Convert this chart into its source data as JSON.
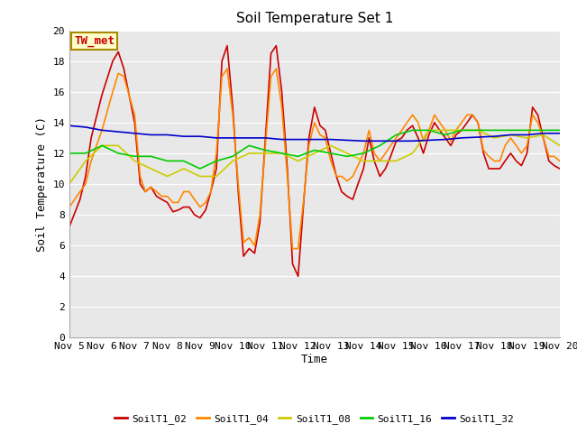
{
  "title": "Soil Temperature Set 1",
  "xlabel": "Time",
  "ylabel": "Soil Temperature (C)",
  "ylim": [
    0,
    20
  ],
  "xlim": [
    0,
    15
  ],
  "plot_bg_color": "#e8e8e8",
  "fig_background": "#ffffff",
  "annotation_text": "TW_met",
  "annotation_color": "#cc0000",
  "annotation_bg": "#ffffcc",
  "annotation_border": "#aa8800",
  "x_tick_labels": [
    "Nov 5",
    "Nov 6",
    "Nov 7",
    "Nov 8",
    "Nov 9",
    "Nov 10",
    "Nov 11",
    "Nov 12",
    "Nov 13",
    "Nov 14",
    "Nov 15",
    "Nov 16",
    "Nov 17",
    "Nov 18",
    "Nov 19",
    "Nov 20"
  ],
  "series_order": [
    "SoilT1_02",
    "SoilT1_04",
    "SoilT1_08",
    "SoilT1_16",
    "SoilT1_32"
  ],
  "series": {
    "SoilT1_02": {
      "color": "#cc0000",
      "x": [
        0,
        0.33,
        0.5,
        0.67,
        1.0,
        1.33,
        1.5,
        1.67,
        2.0,
        2.17,
        2.33,
        2.5,
        2.67,
        2.83,
        3.0,
        3.17,
        3.33,
        3.5,
        3.67,
        3.83,
        4.0,
        4.17,
        4.33,
        4.5,
        4.67,
        4.83,
        5.0,
        5.17,
        5.33,
        5.5,
        5.67,
        5.83,
        6.0,
        6.17,
        6.33,
        6.5,
        6.67,
        6.83,
        7.0,
        7.17,
        7.33,
        7.5,
        7.67,
        7.83,
        8.0,
        8.17,
        8.33,
        8.5,
        8.67,
        8.83,
        9.0,
        9.17,
        9.33,
        9.5,
        9.67,
        9.83,
        10.0,
        10.17,
        10.33,
        10.5,
        10.67,
        10.83,
        11.0,
        11.17,
        11.33,
        11.5,
        11.67,
        11.83,
        12.0,
        12.17,
        12.33,
        12.5,
        12.67,
        12.83,
        13.0,
        13.17,
        13.33,
        13.5,
        13.67,
        13.83,
        14.0,
        14.17,
        14.33,
        14.5,
        14.67,
        14.83,
        15.0
      ],
      "y": [
        7.2,
        9.0,
        10.5,
        13.0,
        15.8,
        18.0,
        18.6,
        17.5,
        14.0,
        10.0,
        9.5,
        9.8,
        9.2,
        9.0,
        8.8,
        8.2,
        8.3,
        8.5,
        8.5,
        8.0,
        7.8,
        8.3,
        9.5,
        11.0,
        18.0,
        19.0,
        15.0,
        9.5,
        5.3,
        5.8,
        5.5,
        7.5,
        13.0,
        18.5,
        19.0,
        16.0,
        11.0,
        4.8,
        4.0,
        8.8,
        13.0,
        15.0,
        13.8,
        13.5,
        12.0,
        10.5,
        9.5,
        9.2,
        9.0,
        10.0,
        11.0,
        13.0,
        11.5,
        10.5,
        11.0,
        11.8,
        12.8,
        13.0,
        13.5,
        13.8,
        13.0,
        12.0,
        13.2,
        14.0,
        13.5,
        13.0,
        12.5,
        13.2,
        13.5,
        14.0,
        14.5,
        14.0,
        12.0,
        11.0,
        11.0,
        11.0,
        11.5,
        12.0,
        11.5,
        11.2,
        12.0,
        15.0,
        14.5,
        13.0,
        11.5,
        11.2,
        11.0
      ]
    },
    "SoilT1_04": {
      "color": "#ff8800",
      "x": [
        0,
        0.33,
        0.5,
        0.67,
        1.0,
        1.33,
        1.5,
        1.67,
        2.0,
        2.17,
        2.33,
        2.5,
        2.67,
        2.83,
        3.0,
        3.17,
        3.33,
        3.5,
        3.67,
        3.83,
        4.0,
        4.17,
        4.33,
        4.5,
        4.67,
        4.83,
        5.0,
        5.17,
        5.33,
        5.5,
        5.67,
        5.83,
        6.0,
        6.17,
        6.33,
        6.5,
        6.67,
        6.83,
        7.0,
        7.17,
        7.33,
        7.5,
        7.67,
        7.83,
        8.0,
        8.17,
        8.33,
        8.5,
        8.67,
        8.83,
        9.0,
        9.17,
        9.33,
        9.5,
        9.67,
        9.83,
        10.0,
        10.17,
        10.33,
        10.5,
        10.67,
        10.83,
        11.0,
        11.17,
        11.33,
        11.5,
        11.67,
        11.83,
        12.0,
        12.17,
        12.33,
        12.5,
        12.67,
        12.83,
        13.0,
        13.17,
        13.33,
        13.5,
        13.67,
        13.83,
        14.0,
        14.17,
        14.33,
        14.5,
        14.67,
        14.83,
        15.0
      ],
      "y": [
        8.5,
        9.5,
        10.0,
        11.5,
        13.5,
        16.0,
        17.2,
        17.0,
        14.5,
        10.5,
        9.5,
        9.8,
        9.5,
        9.2,
        9.2,
        8.8,
        8.8,
        9.5,
        9.5,
        9.0,
        8.5,
        8.8,
        9.5,
        12.0,
        17.0,
        17.5,
        14.5,
        10.0,
        6.2,
        6.5,
        6.0,
        8.0,
        12.5,
        17.0,
        17.5,
        15.0,
        10.5,
        5.8,
        5.8,
        9.0,
        12.5,
        14.0,
        13.2,
        13.0,
        11.5,
        10.5,
        10.5,
        10.2,
        10.5,
        11.2,
        12.0,
        13.5,
        12.0,
        11.5,
        12.0,
        12.5,
        13.0,
        13.5,
        14.0,
        14.5,
        14.0,
        12.8,
        13.5,
        14.5,
        14.0,
        13.5,
        12.8,
        13.5,
        14.0,
        14.5,
        14.5,
        14.0,
        12.2,
        11.8,
        11.5,
        11.5,
        12.5,
        13.0,
        12.5,
        12.0,
        12.5,
        14.5,
        14.0,
        13.0,
        11.8,
        11.8,
        11.5
      ]
    },
    "SoilT1_08": {
      "color": "#cccc00",
      "x": [
        0,
        0.5,
        1.0,
        1.5,
        2.0,
        2.5,
        3.0,
        3.5,
        4.0,
        4.5,
        5.0,
        5.5,
        6.0,
        6.5,
        7.0,
        7.5,
        8.0,
        8.5,
        9.0,
        9.5,
        10.0,
        10.5,
        11.0,
        11.5,
        12.0,
        12.5,
        13.0,
        13.5,
        14.0,
        14.5,
        15.0
      ],
      "y": [
        10.0,
        11.5,
        12.5,
        12.5,
        11.5,
        11.0,
        10.5,
        11.0,
        10.5,
        10.5,
        11.5,
        12.0,
        12.0,
        12.0,
        11.5,
        12.0,
        12.5,
        12.0,
        11.5,
        11.5,
        11.5,
        12.0,
        13.5,
        13.5,
        13.5,
        13.5,
        13.0,
        13.2,
        13.0,
        13.2,
        12.5
      ]
    },
    "SoilT1_16": {
      "color": "#00cc00",
      "x": [
        0,
        0.5,
        1.0,
        1.5,
        2.0,
        2.5,
        3.0,
        3.5,
        4.0,
        4.5,
        5.0,
        5.5,
        6.0,
        6.5,
        7.0,
        7.5,
        8.0,
        8.5,
        9.0,
        9.5,
        10.0,
        10.5,
        11.0,
        11.5,
        12.0,
        12.5,
        13.0,
        13.5,
        14.0,
        14.5,
        15.0
      ],
      "y": [
        12.0,
        12.0,
        12.5,
        12.0,
        11.8,
        11.8,
        11.5,
        11.5,
        11.0,
        11.5,
        11.8,
        12.5,
        12.2,
        12.0,
        11.8,
        12.2,
        12.0,
        11.8,
        12.0,
        12.5,
        13.2,
        13.5,
        13.5,
        13.2,
        13.5,
        13.5,
        13.5,
        13.5,
        13.5,
        13.5,
        13.5
      ]
    },
    "SoilT1_32": {
      "color": "#0000cc",
      "x": [
        0,
        0.5,
        1.0,
        1.5,
        2.0,
        2.5,
        3.0,
        3.5,
        4.0,
        4.5,
        5.0,
        5.5,
        6.0,
        6.5,
        7.0,
        7.5,
        8.0,
        8.5,
        9.0,
        9.5,
        10.0,
        10.5,
        11.0,
        11.5,
        12.0,
        12.5,
        13.0,
        13.5,
        14.0,
        14.5,
        15.0
      ],
      "y": [
        13.8,
        13.7,
        13.5,
        13.4,
        13.3,
        13.2,
        13.2,
        13.1,
        13.1,
        13.0,
        13.0,
        13.0,
        13.0,
        12.9,
        12.9,
        12.9,
        12.9,
        12.85,
        12.8,
        12.8,
        12.8,
        12.8,
        12.85,
        12.9,
        13.0,
        13.05,
        13.1,
        13.2,
        13.2,
        13.3,
        13.3
      ]
    }
  },
  "legend_entries": [
    "SoilT1_02",
    "SoilT1_04",
    "SoilT1_08",
    "SoilT1_16",
    "SoilT1_32"
  ],
  "legend_colors": [
    "#cc0000",
    "#ff8800",
    "#cccc00",
    "#00cc00",
    "#0000cc"
  ],
  "grid_color": "#ffffff",
  "tick_fontsize": 8,
  "label_fontsize": 9,
  "title_fontsize": 11
}
